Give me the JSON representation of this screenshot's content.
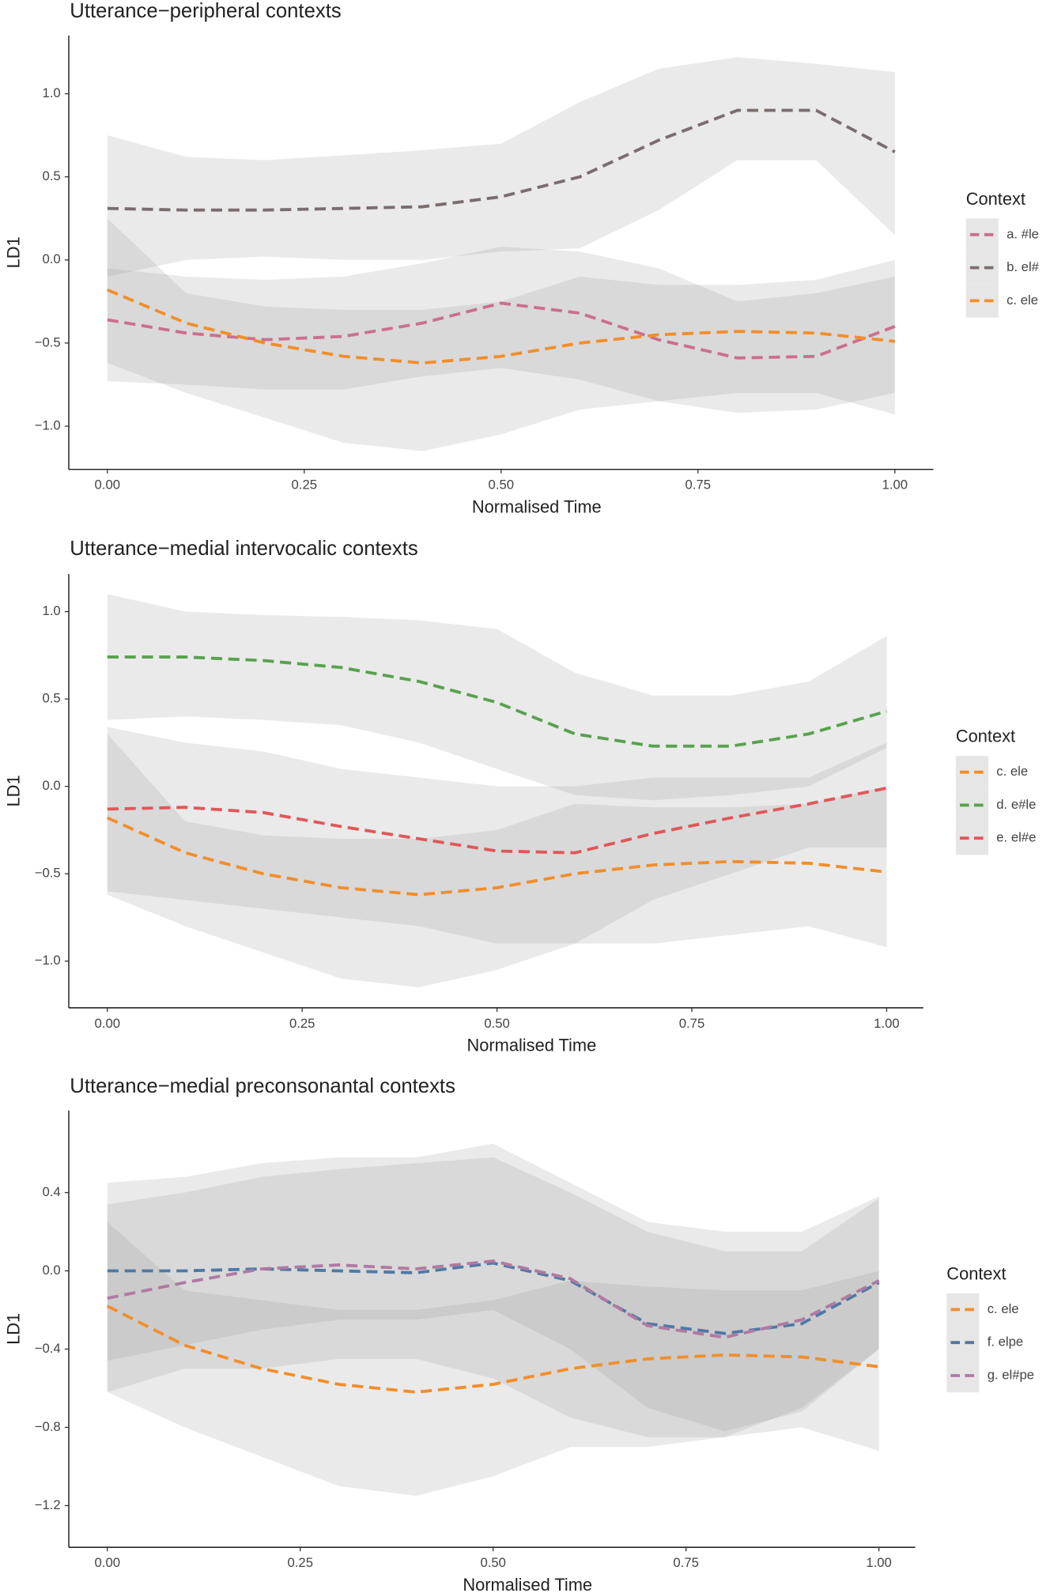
{
  "chart_data": [
    {
      "type": "line",
      "title": "Utterance−peripheral contexts",
      "x_label": "Normalised Time",
      "y_label": "LD1",
      "legend_title": "Context",
      "x": [
        0,
        0.1,
        0.2,
        0.3,
        0.4,
        0.5,
        0.6,
        0.7,
        0.8,
        0.9,
        1.0
      ],
      "xlim": [
        -0.049,
        1.049
      ],
      "ylim": [
        -1.26,
        1.35
      ],
      "xticks": [
        {
          "value": 0,
          "label": "0.00"
        },
        {
          "value": 0.25,
          "label": "0.25"
        },
        {
          "value": 0.5,
          "label": "0.50"
        },
        {
          "value": 0.75,
          "label": "0.75"
        },
        {
          "value": 1,
          "label": "1.00"
        }
      ],
      "yticks": [
        {
          "value": -1,
          "label": "−1.0"
        },
        {
          "value": -0.5,
          "label": "−0.5"
        },
        {
          "value": 0,
          "label": "0.0"
        },
        {
          "value": 0.5,
          "label": "0.5"
        },
        {
          "value": 1,
          "label": "1.0"
        }
      ],
      "series": [
        {
          "name": "a. #le",
          "color": "#cc6f8d",
          "values": [
            -0.36,
            -0.44,
            -0.48,
            -0.46,
            -0.38,
            -0.26,
            -0.32,
            -0.48,
            -0.59,
            -0.58,
            -0.4
          ],
          "upper": [
            -0.05,
            -0.1,
            -0.12,
            -0.1,
            -0.02,
            0.08,
            0.05,
            -0.05,
            -0.25,
            -0.2,
            -0.1
          ],
          "lower": [
            -0.73,
            -0.75,
            -0.78,
            -0.78,
            -0.7,
            -0.65,
            -0.72,
            -0.85,
            -0.92,
            -0.9,
            -0.8
          ]
        },
        {
          "name": "b. el#",
          "color": "#7a6d6d",
          "values": [
            0.31,
            0.3,
            0.3,
            0.31,
            0.32,
            0.38,
            0.5,
            0.72,
            0.9,
            0.9,
            0.65
          ],
          "upper": [
            0.75,
            0.62,
            0.6,
            0.63,
            0.66,
            0.7,
            0.95,
            1.15,
            1.22,
            1.18,
            1.13
          ],
          "lower": [
            -0.1,
            0.0,
            0.02,
            0.0,
            0.0,
            0.05,
            0.07,
            0.3,
            0.6,
            0.6,
            0.15
          ]
        },
        {
          "name": "c. ele",
          "color": "#f28e2b",
          "values": [
            -0.18,
            -0.38,
            -0.5,
            -0.58,
            -0.62,
            -0.58,
            -0.5,
            -0.45,
            -0.43,
            -0.44,
            -0.49
          ],
          "upper": [
            0.25,
            -0.2,
            -0.28,
            -0.3,
            -0.3,
            -0.25,
            -0.1,
            -0.15,
            -0.15,
            -0.12,
            0.0
          ],
          "lower": [
            -0.62,
            -0.8,
            -0.95,
            -1.1,
            -1.15,
            -1.05,
            -0.9,
            -0.85,
            -0.8,
            -0.8,
            -0.93
          ]
        }
      ]
    },
    {
      "type": "line",
      "title": "Utterance−medial intervocalic contexts",
      "x_label": "Normalised Time",
      "y_label": "LD1",
      "legend_title": "Context",
      "x": [
        0,
        0.1,
        0.2,
        0.3,
        0.4,
        0.5,
        0.6,
        0.7,
        0.8,
        0.9,
        1.0
      ],
      "xlim": [
        -0.0495,
        1.047
      ],
      "ylim": [
        -1.267,
        1.215
      ],
      "xticks": [
        {
          "value": 0,
          "label": "0.00"
        },
        {
          "value": 0.25,
          "label": "0.25"
        },
        {
          "value": 0.5,
          "label": "0.50"
        },
        {
          "value": 0.75,
          "label": "0.75"
        },
        {
          "value": 1,
          "label": "1.00"
        }
      ],
      "yticks": [
        {
          "value": -1,
          "label": "−1.0"
        },
        {
          "value": -0.5,
          "label": "−0.5"
        },
        {
          "value": 0,
          "label": "0.0"
        },
        {
          "value": 0.5,
          "label": "0.5"
        },
        {
          "value": 1,
          "label": "1.0"
        }
      ],
      "series": [
        {
          "name": "c. ele",
          "color": "#f28e2b",
          "values": [
            -0.18,
            -0.38,
            -0.5,
            -0.58,
            -0.62,
            -0.58,
            -0.5,
            -0.45,
            -0.43,
            -0.44,
            -0.49
          ],
          "upper": [
            0.3,
            -0.2,
            -0.28,
            -0.3,
            -0.3,
            -0.25,
            -0.1,
            -0.12,
            -0.12,
            -0.1,
            0.0
          ],
          "lower": [
            -0.62,
            -0.8,
            -0.95,
            -1.1,
            -1.15,
            -1.05,
            -0.9,
            -0.9,
            -0.85,
            -0.8,
            -0.92
          ]
        },
        {
          "name": "d. e#le",
          "color": "#59a14f",
          "values": [
            0.74,
            0.74,
            0.72,
            0.68,
            0.6,
            0.48,
            0.3,
            0.23,
            0.23,
            0.3,
            0.43
          ],
          "upper": [
            1.1,
            1.0,
            0.98,
            0.97,
            0.95,
            0.9,
            0.65,
            0.52,
            0.52,
            0.6,
            0.86
          ],
          "lower": [
            0.38,
            0.4,
            0.38,
            0.35,
            0.25,
            0.1,
            -0.05,
            -0.08,
            -0.05,
            0.0,
            0.22
          ]
        },
        {
          "name": "e. el#e",
          "color": "#e15759",
          "values": [
            -0.13,
            -0.12,
            -0.15,
            -0.23,
            -0.3,
            -0.37,
            -0.38,
            -0.27,
            -0.18,
            -0.1,
            -0.01
          ],
          "upper": [
            0.34,
            0.25,
            0.2,
            0.1,
            0.05,
            0.0,
            0.0,
            0.05,
            0.05,
            0.05,
            0.25
          ],
          "lower": [
            -0.6,
            -0.65,
            -0.7,
            -0.75,
            -0.8,
            -0.9,
            -0.9,
            -0.65,
            -0.5,
            -0.35,
            -0.35
          ]
        }
      ]
    },
    {
      "type": "line",
      "title": "Utterance−medial preconsonantal contexts",
      "x_label": "Normalised Time",
      "y_label": "LD1",
      "legend_title": "Context",
      "x": [
        0,
        0.1,
        0.2,
        0.3,
        0.4,
        0.5,
        0.6,
        0.7,
        0.8,
        0.9,
        1.0
      ],
      "xlim": [
        -0.05,
        1.047
      ],
      "ylim": [
        -1.413,
        0.82
      ],
      "xticks": [
        {
          "value": 0,
          "label": "0.00"
        },
        {
          "value": 0.25,
          "label": "0.25"
        },
        {
          "value": 0.5,
          "label": "0.50"
        },
        {
          "value": 0.75,
          "label": "0.75"
        },
        {
          "value": 1,
          "label": "1.00"
        }
      ],
      "yticks": [
        {
          "value": -1.2,
          "label": "−1.2"
        },
        {
          "value": -0.8,
          "label": "−0.8"
        },
        {
          "value": -0.4,
          "label": "−0.4"
        },
        {
          "value": 0,
          "label": "0.0"
        },
        {
          "value": 0.4,
          "label": "0.4"
        }
      ],
      "series": [
        {
          "name": "c. ele",
          "color": "#f28e2b",
          "values": [
            -0.18,
            -0.38,
            -0.5,
            -0.58,
            -0.62,
            -0.58,
            -0.5,
            -0.45,
            -0.43,
            -0.44,
            -0.49
          ],
          "upper": [
            0.25,
            -0.1,
            -0.15,
            -0.2,
            -0.2,
            -0.15,
            -0.05,
            -0.08,
            -0.1,
            -0.1,
            0.0
          ],
          "lower": [
            -0.62,
            -0.8,
            -0.95,
            -1.1,
            -1.15,
            -1.05,
            -0.9,
            -0.9,
            -0.85,
            -0.8,
            -0.92
          ]
        },
        {
          "name": "f. elpe",
          "color": "#4e79a7",
          "values": [
            0.0,
            0.0,
            0.01,
            0.0,
            -0.01,
            0.04,
            -0.05,
            -0.27,
            -0.32,
            -0.27,
            -0.06
          ],
          "upper": [
            0.34,
            0.4,
            0.48,
            0.52,
            0.55,
            0.58,
            0.4,
            0.2,
            0.1,
            0.1,
            0.37
          ],
          "lower": [
            -0.46,
            -0.38,
            -0.3,
            -0.25,
            -0.25,
            -0.2,
            -0.4,
            -0.7,
            -0.82,
            -0.72,
            -0.4
          ]
        },
        {
          "name": "g. el#pe",
          "color": "#b07aa1",
          "values": [
            -0.14,
            -0.06,
            0.01,
            0.03,
            0.01,
            0.05,
            -0.04,
            -0.28,
            -0.34,
            -0.25,
            -0.05
          ],
          "upper": [
            0.45,
            0.48,
            0.55,
            0.58,
            0.58,
            0.65,
            0.45,
            0.25,
            0.2,
            0.2,
            0.38
          ],
          "lower": [
            -0.62,
            -0.5,
            -0.5,
            -0.45,
            -0.45,
            -0.55,
            -0.75,
            -0.85,
            -0.85,
            -0.7,
            -0.4
          ]
        }
      ]
    }
  ]
}
